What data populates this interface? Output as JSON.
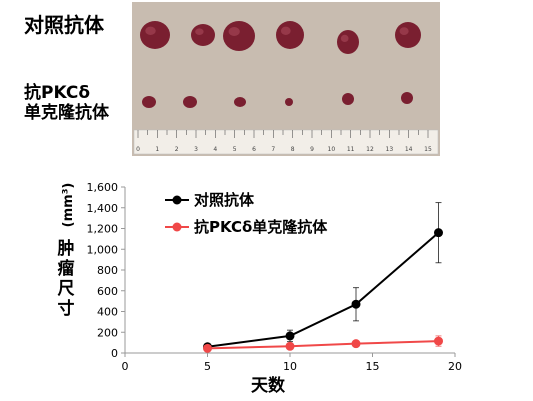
{
  "photo": {
    "row_control_label": "对照抗体",
    "row_treated_label_line1": "抗PKCδ",
    "row_treated_label_line2": "单克隆抗体",
    "ruler_numbers": [
      "0",
      "1",
      "2",
      "3",
      "4",
      "5",
      "6",
      "7",
      "8",
      "9",
      "10",
      "11",
      "12",
      "13",
      "14",
      "15"
    ],
    "colors": {
      "background": "#c8bcb0",
      "tumor": "#7a1f30",
      "ruler": "#f2eee8"
    }
  },
  "chart_data": {
    "type": "line",
    "title": "",
    "xlabel": "天数",
    "ylabel_chars": [
      "肿",
      "瘤",
      "尺",
      "寸"
    ],
    "ylabel_unit": "(mm³)",
    "xlim": [
      0,
      20
    ],
    "ylim": [
      0,
      1600
    ],
    "x_ticks": [
      "0",
      "5",
      "10",
      "15",
      "20"
    ],
    "y_ticks": [
      "0",
      "200",
      "400",
      "600",
      "800",
      "1,000",
      "1,200",
      "1,400",
      "1,600"
    ],
    "grid": false,
    "legend_position": "top-left",
    "series": [
      {
        "name": "对照抗体",
        "color": "#000000",
        "x": [
          5,
          10,
          14,
          19
        ],
        "y": [
          60,
          165,
          470,
          1160
        ],
        "err": [
          15,
          55,
          160,
          290
        ]
      },
      {
        "name": "抗PKCδ单克隆抗体",
        "color": "#f04848",
        "x": [
          5,
          10,
          14,
          19
        ],
        "y": [
          45,
          65,
          90,
          115
        ],
        "err": [
          10,
          12,
          25,
          50
        ]
      }
    ]
  }
}
